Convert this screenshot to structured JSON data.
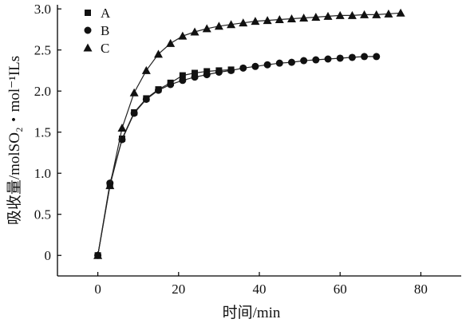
{
  "chart_data": {
    "type": "line",
    "xlabel": "时间/min",
    "ylabel": "吸收量/molSO₂・mol⁻¹ILs",
    "xlim": [
      -10,
      90
    ],
    "ylim": [
      -0.25,
      3.05
    ],
    "xticks": [
      "0",
      "20",
      "40",
      "60",
      "80"
    ],
    "yticks": [
      "0",
      "0.5",
      "1.0",
      "1.5",
      "2.0",
      "2.5",
      "3.0"
    ],
    "legend_position": "top-left",
    "series": [
      {
        "name": "A",
        "marker": "square",
        "x": [
          0,
          3,
          6,
          9,
          12,
          15,
          18,
          21,
          24,
          27,
          30,
          33
        ],
        "y": [
          0,
          0.85,
          1.42,
          1.74,
          1.91,
          2.02,
          2.1,
          2.19,
          2.22,
          2.24,
          2.25,
          2.26
        ]
      },
      {
        "name": "B",
        "marker": "circle",
        "x": [
          0,
          3,
          6,
          9,
          12,
          15,
          18,
          21,
          24,
          27,
          30,
          33,
          36,
          39,
          42,
          45,
          48,
          51,
          54,
          57,
          60,
          63,
          66,
          69
        ],
        "y": [
          0,
          0.88,
          1.41,
          1.73,
          1.9,
          2.01,
          2.08,
          2.13,
          2.17,
          2.2,
          2.23,
          2.25,
          2.28,
          2.3,
          2.32,
          2.34,
          2.35,
          2.37,
          2.38,
          2.39,
          2.4,
          2.41,
          2.42,
          2.42
        ]
      },
      {
        "name": "C",
        "marker": "triangle",
        "x": [
          0,
          3,
          6,
          9,
          12,
          15,
          18,
          21,
          24,
          27,
          30,
          33,
          36,
          39,
          42,
          45,
          48,
          51,
          54,
          57,
          60,
          63,
          66,
          69,
          72,
          75
        ],
        "y": [
          0,
          0.85,
          1.55,
          1.98,
          2.25,
          2.45,
          2.58,
          2.67,
          2.72,
          2.76,
          2.79,
          2.81,
          2.83,
          2.85,
          2.86,
          2.87,
          2.88,
          2.89,
          2.9,
          2.91,
          2.92,
          2.92,
          2.93,
          2.93,
          2.94,
          2.95
        ]
      }
    ]
  }
}
